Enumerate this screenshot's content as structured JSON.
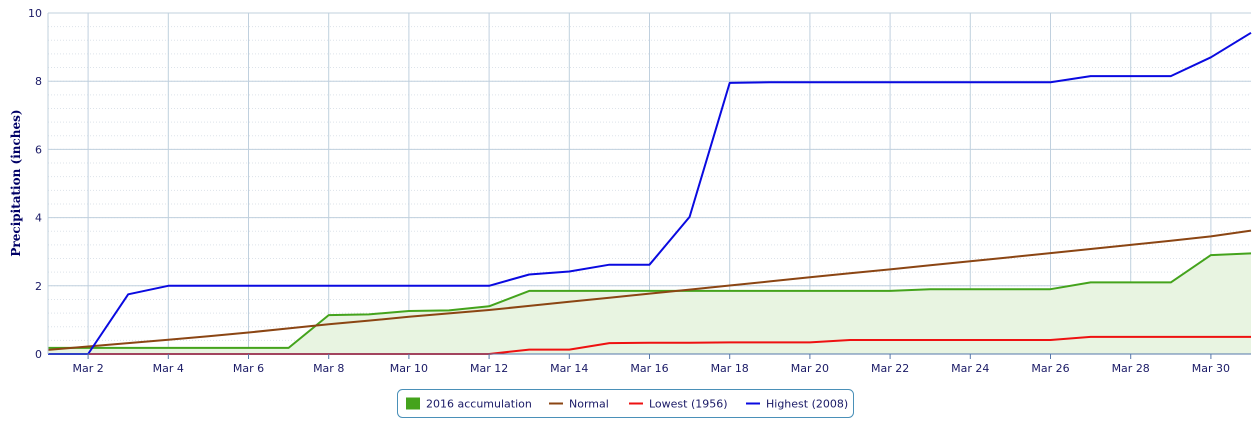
{
  "chart_data": {
    "type": "line",
    "title": "",
    "xlabel": "",
    "ylabel": "Precipitation (inches)",
    "x": [
      "Mar 1",
      "Mar 2",
      "Mar 3",
      "Mar 4",
      "Mar 5",
      "Mar 6",
      "Mar 7",
      "Mar 8",
      "Mar 9",
      "Mar 10",
      "Mar 11",
      "Mar 12",
      "Mar 13",
      "Mar 14",
      "Mar 15",
      "Mar 16",
      "Mar 17",
      "Mar 18",
      "Mar 19",
      "Mar 20",
      "Mar 21",
      "Mar 22",
      "Mar 23",
      "Mar 24",
      "Mar 25",
      "Mar 26",
      "Mar 27",
      "Mar 28",
      "Mar 29",
      "Mar 30",
      "Mar 31"
    ],
    "x_tick_labels": [
      "Mar 2",
      "Mar 4",
      "Mar 6",
      "Mar 8",
      "Mar 10",
      "Mar 12",
      "Mar 14",
      "Mar 16",
      "Mar 18",
      "Mar 20",
      "Mar 22",
      "Mar 24",
      "Mar 26",
      "Mar 28",
      "Mar 30"
    ],
    "y_ticks": [
      0,
      2,
      4,
      6,
      8,
      10
    ],
    "ylim": [
      0,
      10
    ],
    "grid": true,
    "legend_position": "bottom-center",
    "series": [
      {
        "name": "2016 accumulation",
        "style": "area",
        "color": "#44a31c",
        "fill": "#e8f4e1",
        "values": [
          0.18,
          0.18,
          0.18,
          0.18,
          0.18,
          0.18,
          0.18,
          1.14,
          1.16,
          1.26,
          1.28,
          1.4,
          1.85,
          1.85,
          1.85,
          1.85,
          1.85,
          1.85,
          1.85,
          1.85,
          1.85,
          1.85,
          1.9,
          1.9,
          1.9,
          1.9,
          2.1,
          2.1,
          2.1,
          2.9,
          2.95
        ]
      },
      {
        "name": "Normal",
        "style": "line",
        "color": "#8b4513",
        "values": [
          0.12,
          0.22,
          0.32,
          0.42,
          0.52,
          0.63,
          0.75,
          0.87,
          0.98,
          1.09,
          1.19,
          1.29,
          1.41,
          1.53,
          1.65,
          1.77,
          1.89,
          2.01,
          2.13,
          2.25,
          2.37,
          2.48,
          2.6,
          2.72,
          2.84,
          2.96,
          3.08,
          3.2,
          3.32,
          3.45,
          3.62
        ]
      },
      {
        "name": "Lowest (1956)",
        "style": "line",
        "color": "#ee1111",
        "values": [
          0,
          0,
          0,
          0,
          0,
          0,
          0,
          0,
          0,
          0,
          0,
          0,
          0.13,
          0.13,
          0.32,
          0.33,
          0.33,
          0.34,
          0.34,
          0.34,
          0.41,
          0.41,
          0.41,
          0.41,
          0.41,
          0.41,
          0.5,
          0.5,
          0.5,
          0.5,
          0.5
        ]
      },
      {
        "name": "Highest (2008)",
        "style": "line",
        "color": "#0a0ae0",
        "values": [
          0,
          0,
          1.75,
          2,
          2,
          2,
          2,
          2,
          2,
          2,
          2,
          2,
          2.33,
          2.42,
          2.62,
          2.62,
          4.02,
          7.95,
          7.97,
          7.97,
          7.97,
          7.97,
          7.97,
          7.97,
          7.97,
          7.97,
          8.15,
          8.15,
          8.15,
          8.7,
          9.42
        ]
      }
    ]
  }
}
